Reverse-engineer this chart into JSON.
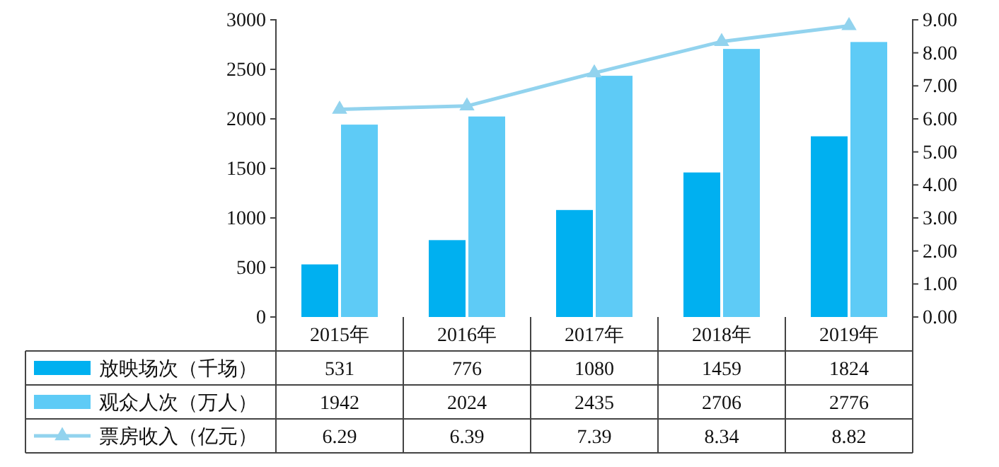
{
  "chart_data": {
    "type": "bar",
    "categories": [
      "2015年",
      "2016年",
      "2017年",
      "2018年",
      "2019年"
    ],
    "series": [
      {
        "name": "放映场次（千场）",
        "color": "#00b0f0",
        "values": [
          531,
          776,
          1080,
          1459,
          1824
        ]
      },
      {
        "name": "观众人次（万人）",
        "color": "#5ecbf6",
        "values": [
          1942,
          2024,
          2435,
          2706,
          2776
        ]
      },
      {
        "name": "票房收入（亿元）",
        "type": "line",
        "axis": "y2",
        "color": "#92d3ee",
        "marker": "triangle",
        "values": [
          6.29,
          6.39,
          7.39,
          8.34,
          8.82
        ]
      }
    ],
    "ylim": [
      0,
      3000
    ],
    "yticks": [
      0,
      500,
      1000,
      1500,
      2000,
      2500,
      3000
    ],
    "y2lim": [
      0,
      9
    ],
    "y2ticks": [
      {
        "value": 0,
        "label": "0.00"
      },
      {
        "value": 1,
        "label": "1.00"
      },
      {
        "value": 2,
        "label": "2.00"
      },
      {
        "value": 3,
        "label": "3.00"
      },
      {
        "value": 4,
        "label": "4.00"
      },
      {
        "value": 5,
        "label": "5.00"
      },
      {
        "value": 6,
        "label": "6.00"
      },
      {
        "value": 7,
        "label": "7.00"
      },
      {
        "value": 8,
        "label": "8.00"
      },
      {
        "value": 9,
        "label": "9.00"
      }
    ],
    "grid": false,
    "legend": "bottom",
    "data_labels": true
  }
}
